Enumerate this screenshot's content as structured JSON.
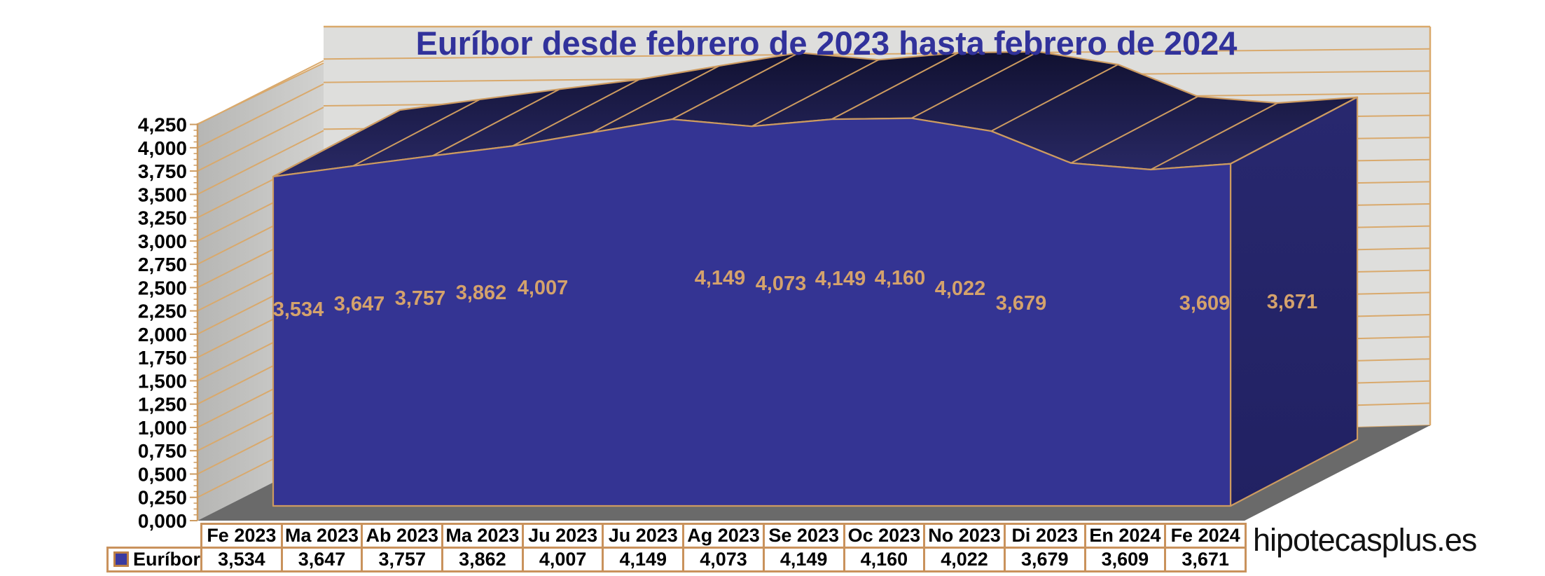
{
  "brand": "hipotecasplus.es",
  "chart_data": {
    "type": "area",
    "projection": "3d-oblique",
    "title": "Euríbor desde febrero de 2023 hasta febrero de 2024",
    "categories": [
      "Fe 2023",
      "Ma 2023",
      "Ab 2023",
      "Ma 2023",
      "Ju 2023",
      "Ju 2023",
      "Ag 2023",
      "Se 2023",
      "Oc 2023",
      "No 2023",
      "Di 2023",
      "En 2024",
      "Fe 2024"
    ],
    "series": [
      {
        "name": "Euríbor",
        "values": [
          3.534,
          3.647,
          3.757,
          3.862,
          4.007,
          4.149,
          4.073,
          4.149,
          4.16,
          4.022,
          3.679,
          3.609,
          3.671
        ]
      }
    ],
    "point_labels": [
      "3,534",
      "3,647",
      "3,757",
      "3,862",
      "4,007",
      "4,149",
      "4,073",
      "4,149",
      "4,160",
      "4,022",
      "3,679",
      "3,609",
      "3,671"
    ],
    "y_axis": {
      "min": 0,
      "max": 4.25,
      "step": 0.25,
      "minor_ticks_per_major": 4,
      "tick_labels": [
        "0,000",
        "0,250",
        "0,500",
        "0,750",
        "1,000",
        "1,250",
        "1,500",
        "1,750",
        "2,000",
        "2,250",
        "2,500",
        "2,750",
        "3,000",
        "3,250",
        "3,500",
        "3,750",
        "4,000",
        "4,250"
      ]
    },
    "grid": true,
    "legend": {
      "label": "Euríbor",
      "position": "bottom-table-left"
    },
    "colors": {
      "background": "#FFFFFF",
      "title": "#31329B",
      "area_front": "#343493",
      "area_top_dark": "#0C0C26",
      "area_top_light": "#2D2D6E",
      "area_side": "#24246B",
      "edge_tan": "#CD9B60",
      "wall_grid_tan": "#D9A96C",
      "back_wall": "#DEDEDC",
      "left_wall_dark": "#B6B6B4",
      "left_wall_light": "#D2D2D0",
      "floor": "#6A6A6A",
      "tick_label": "#000000",
      "point_label": "#D4A26C",
      "table_border": "#C9925C",
      "table_text": "#000000",
      "legend_swatch": "#3A3AA0"
    }
  },
  "table": {
    "legend_label": "Euríbor"
  }
}
